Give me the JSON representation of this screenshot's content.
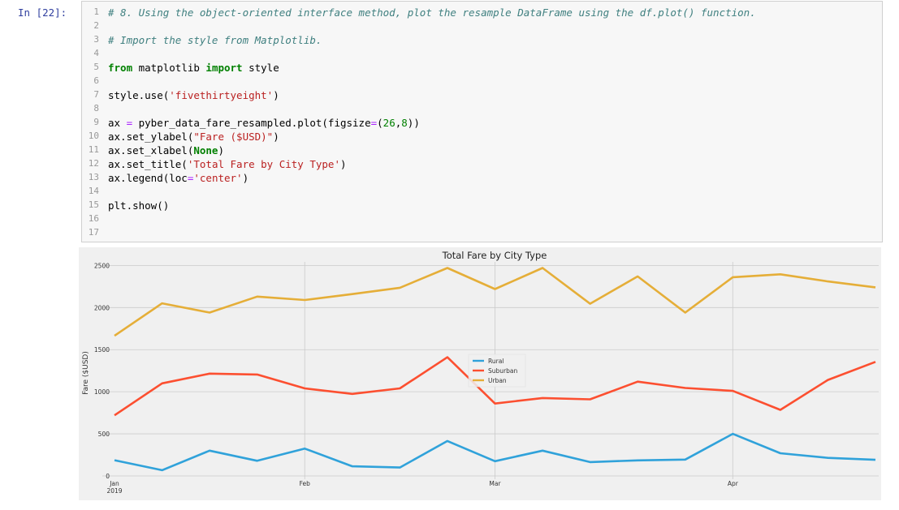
{
  "cell": {
    "prompt": "In [22]:",
    "line_numbers": [
      "1",
      "2",
      "3",
      "4",
      "5",
      "6",
      "7",
      "8",
      "9",
      "10",
      "11",
      "12",
      "13",
      "14",
      "15",
      "16",
      "17"
    ]
  },
  "chart_data": {
    "type": "line",
    "title": "Total Fare by City Type",
    "xlabel": "",
    "ylabel": "Fare ($USD)",
    "ylim": [
      0,
      2600
    ],
    "yticks": [
      0,
      500,
      1000,
      1500,
      2000,
      2500
    ],
    "x": [
      "2019-01-06",
      "2019-01-13",
      "2019-01-20",
      "2019-01-27",
      "2019-02-03",
      "2019-02-10",
      "2019-02-17",
      "2019-02-24",
      "2019-03-03",
      "2019-03-10",
      "2019-03-17",
      "2019-03-24",
      "2019-03-31",
      "2019-04-07",
      "2019-04-14",
      "2019-04-21",
      "2019-04-28"
    ],
    "xtick_labels": [
      {
        "date": "2019-01-06",
        "label": "Jan",
        "sub": "2019"
      },
      {
        "date": "2019-02-03",
        "label": "Feb",
        "sub": ""
      },
      {
        "date": "2019-03-03",
        "label": "Mar",
        "sub": ""
      },
      {
        "date": "2019-04-07",
        "label": "Apr",
        "sub": ""
      }
    ],
    "series": [
      {
        "name": "Rural",
        "color": "#30a2da",
        "values": [
          187,
          68,
          300,
          180,
          325,
          115,
          100,
          415,
          175,
          300,
          165,
          185,
          195,
          500,
          270,
          215,
          192
        ]
      },
      {
        "name": "Suburban",
        "color": "#fc4f30",
        "values": [
          720,
          1100,
          1215,
          1205,
          1040,
          975,
          1040,
          1410,
          860,
          925,
          910,
          1120,
          1045,
          1010,
          785,
          1140,
          1355
        ]
      },
      {
        "name": "Urban",
        "color": "#e5ae38",
        "values": [
          1665,
          2050,
          1940,
          2130,
          2090,
          2160,
          2235,
          2470,
          2220,
          2470,
          2045,
          2370,
          1940,
          2360,
          2395,
          2310,
          2240
        ]
      }
    ],
    "legend": "center",
    "grid": true
  }
}
